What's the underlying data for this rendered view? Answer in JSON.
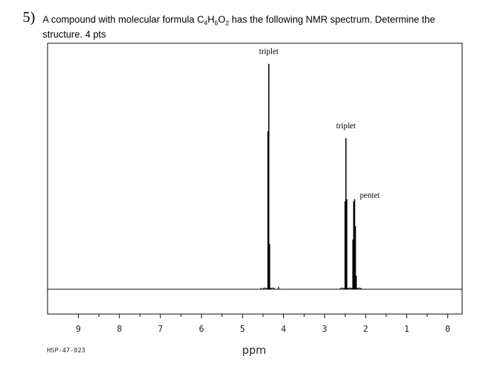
{
  "question": {
    "number": "5)",
    "text_pre": "A compound with molecular formula C",
    "formula_c": "4",
    "formula_h_label": "H",
    "formula_h": "6",
    "formula_o_label": "O",
    "formula_o": "2",
    "text_post": " has the following NMR spectrum. Determine the structure. 4 pts"
  },
  "spectrum": {
    "sample_id": "HSP-47-023",
    "xlabel": "ppm"
  },
  "chart_data": {
    "type": "line",
    "title": "",
    "xlabel": "ppm",
    "ylabel": "",
    "xlim": [
      9.75,
      -0.35
    ],
    "x_reversed": true,
    "ticks": [
      9,
      8,
      7,
      6,
      5,
      4,
      3,
      2,
      1,
      0
    ],
    "grid": false,
    "peaks": [
      {
        "label": "triplet",
        "center": 4.36,
        "lines": [
          {
            "x": 4.38,
            "h": 0.7
          },
          {
            "x": 4.36,
            "h": 1.0
          },
          {
            "x": 4.34,
            "h": 0.2
          }
        ]
      },
      {
        "label": "triplet",
        "center": 2.48,
        "lines": [
          {
            "x": 2.5,
            "h": 0.39
          },
          {
            "x": 2.48,
            "h": 0.67
          },
          {
            "x": 2.46,
            "h": 0.4
          }
        ]
      },
      {
        "label": "pentet",
        "center": 2.28,
        "lines": [
          {
            "x": 2.31,
            "h": 0.22
          },
          {
            "x": 2.29,
            "h": 0.39
          },
          {
            "x": 2.27,
            "h": 0.4
          },
          {
            "x": 2.25,
            "h": 0.28
          },
          {
            "x": 2.23,
            "h": 0.06
          }
        ]
      }
    ]
  }
}
